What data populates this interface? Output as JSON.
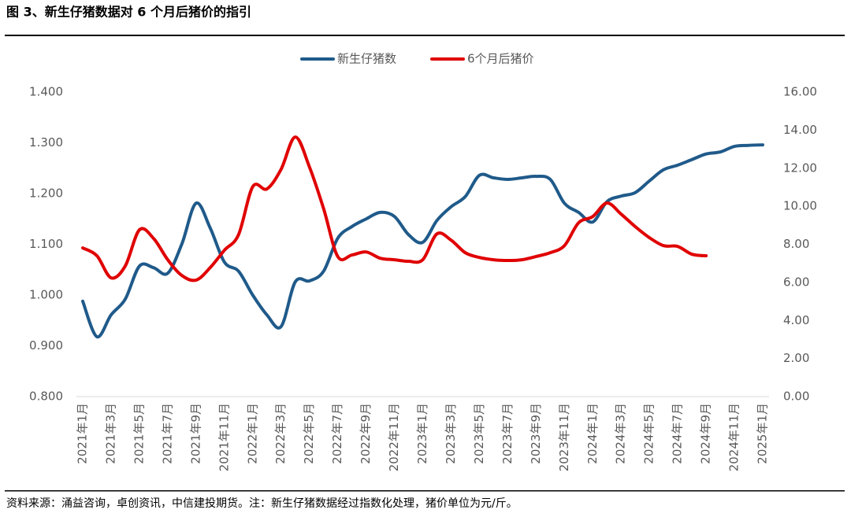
{
  "chart_data": {
    "type": "line",
    "title": "图 3、新生仔猪数据对 6 个月后猪价的指引",
    "source": "资料来源：涌益咨询，卓创资讯，中信建投期货。注：新生仔猪数据经过指数化处理，猪价单位为元/斤。",
    "categories": [
      "2021年1月",
      null,
      "2021年3月",
      null,
      "2021年5月",
      null,
      "2021年7月",
      null,
      "2021年9月",
      null,
      "2021年11月",
      null,
      "2022年1月",
      null,
      "2022年3月",
      null,
      "2022年5月",
      null,
      "2022年7月",
      null,
      "2022年9月",
      null,
      "2022年11月",
      null,
      "2023年1月",
      null,
      "2023年3月",
      null,
      "2023年5月",
      null,
      "2023年7月",
      null,
      "2023年9月",
      null,
      "2023年11月",
      null,
      "2024年1月",
      null,
      "2024年3月",
      null,
      "2024年5月",
      null,
      "2024年7月",
      null,
      "2024年9月",
      null,
      "2024年11月",
      null,
      "2025年1月"
    ],
    "series": [
      {
        "name": "新生仔猪数",
        "color": "#1f5a8a",
        "axis": "y",
        "values": [
          0.988,
          0.918,
          0.961,
          0.992,
          1.057,
          1.054,
          1.043,
          1.101,
          1.181,
          1.132,
          1.065,
          1.047,
          1.0,
          0.961,
          0.938,
          1.026,
          1.028,
          1.047,
          1.112,
          1.135,
          1.15,
          1.163,
          1.155,
          1.119,
          1.104,
          1.147,
          1.174,
          1.194,
          1.236,
          1.231,
          1.228,
          1.231,
          1.234,
          1.228,
          1.181,
          1.163,
          1.144,
          1.184,
          1.195,
          1.202,
          1.225,
          1.247,
          1.256,
          1.267,
          1.278,
          1.282,
          1.293,
          1.295,
          1.296
        ]
      },
      {
        "name": "6个月后猪价",
        "color": "#e00000",
        "axis": "y2",
        "values": [
          7.81,
          7.4,
          6.24,
          6.86,
          8.76,
          8.31,
          7.19,
          6.36,
          6.12,
          6.78,
          7.69,
          8.51,
          11.03,
          10.91,
          11.94,
          13.64,
          12.07,
          9.88,
          7.36,
          7.44,
          7.6,
          7.27,
          7.19,
          7.11,
          7.19,
          8.55,
          8.22,
          7.56,
          7.31,
          7.19,
          7.15,
          7.19,
          7.36,
          7.56,
          7.93,
          9.13,
          9.46,
          10.17,
          9.59,
          8.93,
          8.35,
          7.93,
          7.89,
          7.48,
          7.4,
          null,
          null,
          null,
          null
        ]
      }
    ],
    "ylim": [
      0.8,
      1.4
    ],
    "yticks": [
      {
        "value": 0.8,
        "label": "0.800"
      },
      {
        "value": 0.9,
        "label": "0.900"
      },
      {
        "value": 1.0,
        "label": "1.000"
      },
      {
        "value": 1.1,
        "label": "1.100"
      },
      {
        "value": 1.2,
        "label": "1.200"
      },
      {
        "value": 1.3,
        "label": "1.300"
      },
      {
        "value": 1.4,
        "label": "1.400"
      }
    ],
    "y2lim": [
      0,
      16
    ],
    "y2ticks": [
      {
        "value": 0,
        "label": "0.00"
      },
      {
        "value": 2,
        "label": "2.00"
      },
      {
        "value": 4,
        "label": "4.00"
      },
      {
        "value": 6,
        "label": "6.00"
      },
      {
        "value": 8,
        "label": "8.00"
      },
      {
        "value": 10,
        "label": "10.00"
      },
      {
        "value": 12,
        "label": "12.00"
      },
      {
        "value": 14,
        "label": "14.00"
      },
      {
        "value": 16,
        "label": "16.00"
      }
    ],
    "legend": "top"
  }
}
